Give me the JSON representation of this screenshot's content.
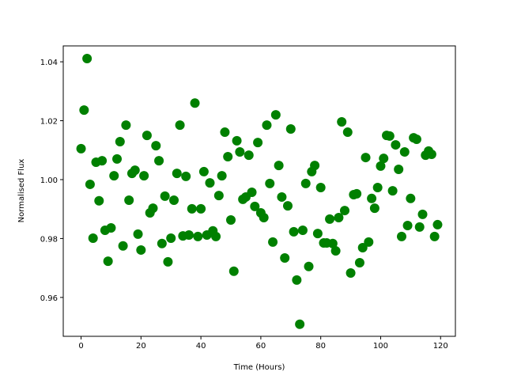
{
  "chart_data": {
    "type": "scatter",
    "x_label": "Time (Hours)",
    "y_label": "Normalised Flux",
    "color": "#008000",
    "x": [
      0,
      1,
      2,
      3,
      4,
      5,
      6,
      7,
      8,
      9,
      10,
      11,
      12,
      13,
      14,
      15,
      16,
      17,
      18,
      19,
      20,
      21,
      22,
      23,
      24,
      25,
      26,
      27,
      28,
      29,
      30,
      31,
      32,
      33,
      34,
      35,
      36,
      37,
      38,
      39,
      40,
      41,
      42,
      43,
      44,
      45,
      46,
      47,
      48,
      49,
      50,
      51,
      52,
      53,
      54,
      55,
      56,
      57,
      58,
      59,
      60,
      61,
      62,
      63,
      64,
      65,
      66,
      67,
      68,
      69,
      70,
      71,
      72,
      73,
      74,
      75,
      76,
      77,
      78,
      79,
      80,
      81,
      82,
      83,
      84,
      85,
      86,
      87,
      88,
      89,
      90,
      91,
      92,
      93,
      94,
      95,
      96,
      97,
      98,
      99,
      100,
      101,
      102,
      103,
      104,
      105,
      106,
      107,
      108,
      109,
      110,
      111,
      112,
      113,
      114,
      115,
      116,
      117,
      118,
      119
    ],
    "values": [
      1.0105,
      1.0236,
      1.0411,
      0.9984,
      0.9801,
      1.0059,
      0.9928,
      1.0064,
      0.9828,
      0.9723,
      0.9836,
      1.0013,
      1.007,
      1.0129,
      0.9775,
      1.0185,
      0.993,
      1.0021,
      1.0032,
      0.9815,
      0.9761,
      1.0013,
      1.015,
      0.9887,
      0.9903,
      1.0115,
      1.0064,
      0.9783,
      0.9944,
      0.9721,
      0.9801,
      0.993,
      1.0021,
      1.0185,
      0.9809,
      1.0011,
      0.9812,
      0.9901,
      1.026,
      0.9807,
      0.9901,
      1.0027,
      0.9812,
      0.9989,
      0.9826,
      0.9807,
      0.9946,
      1.0013,
      1.0161,
      1.0078,
      0.9863,
      0.9689,
      1.0132,
      1.0094,
      0.9933,
      0.9941,
      1.0083,
      0.9957,
      0.9909,
      1.0126,
      0.9887,
      0.9871,
      1.0185,
      0.9987,
      0.9788,
      1.022,
      1.0048,
      0.9941,
      0.9734,
      0.9911,
      1.0172,
      0.9823,
      0.9659,
      0.9509,
      0.9828,
      0.9987,
      0.9705,
      1.0027,
      1.0048,
      0.9817,
      0.9973,
      0.9785,
      0.9785,
      0.9866,
      0.9783,
      0.9758,
      0.9871,
      1.0196,
      0.9895,
      1.0161,
      0.9683,
      0.9949,
      0.9952,
      0.9718,
      0.9769,
      1.0075,
      0.9788,
      0.9936,
      0.9903,
      0.9973,
      1.0046,
      1.0072,
      1.015,
      1.0148,
      0.9962,
      1.0118,
      1.0035,
      0.9807,
      1.0094,
      0.9844,
      0.9936,
      1.0142,
      1.0137,
      0.9839,
      0.9882,
      1.0083,
      1.0097,
      1.0086,
      0.9807,
      0.9847
    ],
    "xlim": [
      -5.95,
      124.95
    ],
    "xticks": [
      0,
      20,
      40,
      60,
      80,
      100,
      120
    ],
    "ylim": [
      0.9468,
      1.0454
    ],
    "yticks": [
      0.96,
      0.98,
      {
        "value": 1.0,
        "label": "1.00"
      },
      1.02,
      1.04
    ]
  }
}
